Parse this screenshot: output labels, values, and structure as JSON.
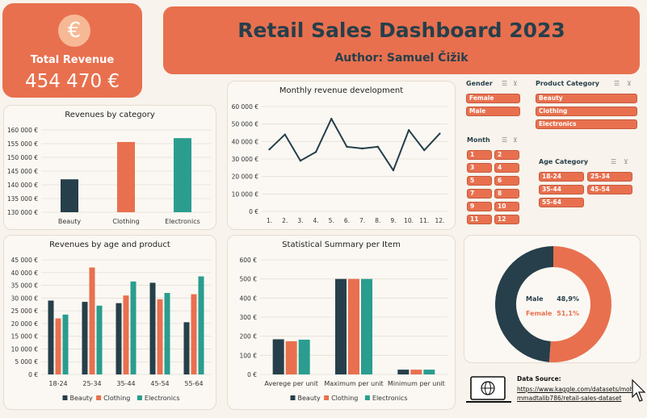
{
  "header": {
    "title": "Retail Sales Dashboard 2023",
    "author": "Author: Samuel Čižik"
  },
  "kpi": {
    "icon": "euro-icon",
    "symbol": "€",
    "label": "Total Revenue",
    "value": "454 470 €"
  },
  "colors": {
    "dark": "#263f4a",
    "orange": "#e8704f",
    "teal": "#2a9d8f",
    "bg": "#f8f3ec"
  },
  "slicers": {
    "gender": {
      "title": "Gender",
      "items": [
        "Female",
        "Male"
      ]
    },
    "product_category": {
      "title": "Product Category",
      "items": [
        "Beauty",
        "Clothing",
        "Electronics"
      ]
    },
    "month": {
      "title": "Month",
      "items": [
        "1",
        "2",
        "3",
        "4",
        "5",
        "6",
        "7",
        "8",
        "9",
        "10",
        "11",
        "12"
      ]
    },
    "age_category": {
      "title": "Age Category",
      "items": [
        "18-24",
        "25-34",
        "35-44",
        "45-54",
        "55-64"
      ]
    }
  },
  "source": {
    "label": "Data Source:",
    "url": "https://www.kaggle.com/datasets/mohammadtalib786/retail-sales-dataset"
  },
  "chart_data": [
    {
      "id": "revenues_by_category",
      "type": "bar",
      "title": "Revenues by category",
      "categories": [
        "Beauty",
        "Clothing",
        "Electronics"
      ],
      "values": [
        142000,
        155600,
        157000
      ],
      "colors": [
        "#263f4a",
        "#e8704f",
        "#2a9d8f"
      ],
      "ylim": [
        130000,
        160000
      ],
      "yticks": [
        130000,
        135000,
        140000,
        145000,
        150000,
        155000,
        160000
      ],
      "ytick_labels": [
        "130 000 €",
        "135 000 €",
        "140 000 €",
        "145 000 €",
        "150 000 €",
        "155 000 €",
        "160 000 €"
      ]
    },
    {
      "id": "monthly_revenue",
      "type": "line",
      "title": "Monthly revenue development",
      "x": [
        "1.",
        "2.",
        "3.",
        "4.",
        "5.",
        "6.",
        "7.",
        "8.",
        "9.",
        "10.",
        "11.",
        "12."
      ],
      "values": [
        35500,
        44000,
        29000,
        34000,
        53000,
        37000,
        36000,
        37000,
        23500,
        46500,
        35000,
        44500
      ],
      "color": "#263f4a",
      "ylim": [
        0,
        60000
      ],
      "yticks": [
        0,
        10000,
        20000,
        30000,
        40000,
        50000,
        60000
      ],
      "ytick_labels": [
        "0 €",
        "10 000 €",
        "20 000 €",
        "30 000 €",
        "40 000 €",
        "50 000 €",
        "60 000 €"
      ]
    },
    {
      "id": "revenues_by_age_product",
      "type": "bar",
      "title": "Revenues by age and product",
      "categories": [
        "18-24",
        "25-34",
        "35-44",
        "45-54",
        "55-64"
      ],
      "series": [
        {
          "name": "Beauty",
          "color": "#263f4a",
          "values": [
            29000,
            28500,
            28000,
            36000,
            20500
          ]
        },
        {
          "name": "Clothing",
          "color": "#e8704f",
          "values": [
            22000,
            42000,
            31000,
            29500,
            31500
          ]
        },
        {
          "name": "Electronics",
          "color": "#2a9d8f",
          "values": [
            23500,
            27000,
            36500,
            32000,
            38500
          ]
        }
      ],
      "ylim": [
        0,
        45000
      ],
      "yticks": [
        0,
        5000,
        10000,
        15000,
        20000,
        25000,
        30000,
        35000,
        40000,
        45000
      ],
      "ytick_labels": [
        "0 €",
        "5 000 €",
        "10 000 €",
        "15 000 €",
        "20 000 €",
        "25 000 €",
        "30 000 €",
        "35 000 €",
        "40 000 €",
        "45 000 €"
      ],
      "legend": "bottom"
    },
    {
      "id": "statistical_summary",
      "type": "bar",
      "title": "Statistical Summary per Item",
      "categories": [
        "Averege per unit",
        "Maximum per unit",
        "Minimum per unit"
      ],
      "series": [
        {
          "name": "Beauty",
          "color": "#263f4a",
          "values": [
            184,
            500,
            25
          ]
        },
        {
          "name": "Clothing",
          "color": "#e8704f",
          "values": [
            174,
            500,
            25
          ]
        },
        {
          "name": "Electronics",
          "color": "#2a9d8f",
          "values": [
            182,
            500,
            25
          ]
        }
      ],
      "ylim": [
        0,
        600
      ],
      "yticks": [
        0,
        100,
        200,
        300,
        400,
        500,
        600
      ],
      "ytick_labels": [
        "0 €",
        "100 €",
        "200 €",
        "300 €",
        "400 €",
        "500 €",
        "600 €"
      ],
      "legend": "bottom"
    },
    {
      "id": "gender_split",
      "type": "pie",
      "labels": [
        "Male",
        "Female"
      ],
      "values": [
        48.9,
        51.1
      ],
      "value_labels": [
        "48,9%",
        "51,1%"
      ],
      "colors": [
        "#263f4a",
        "#e8704f"
      ]
    }
  ]
}
